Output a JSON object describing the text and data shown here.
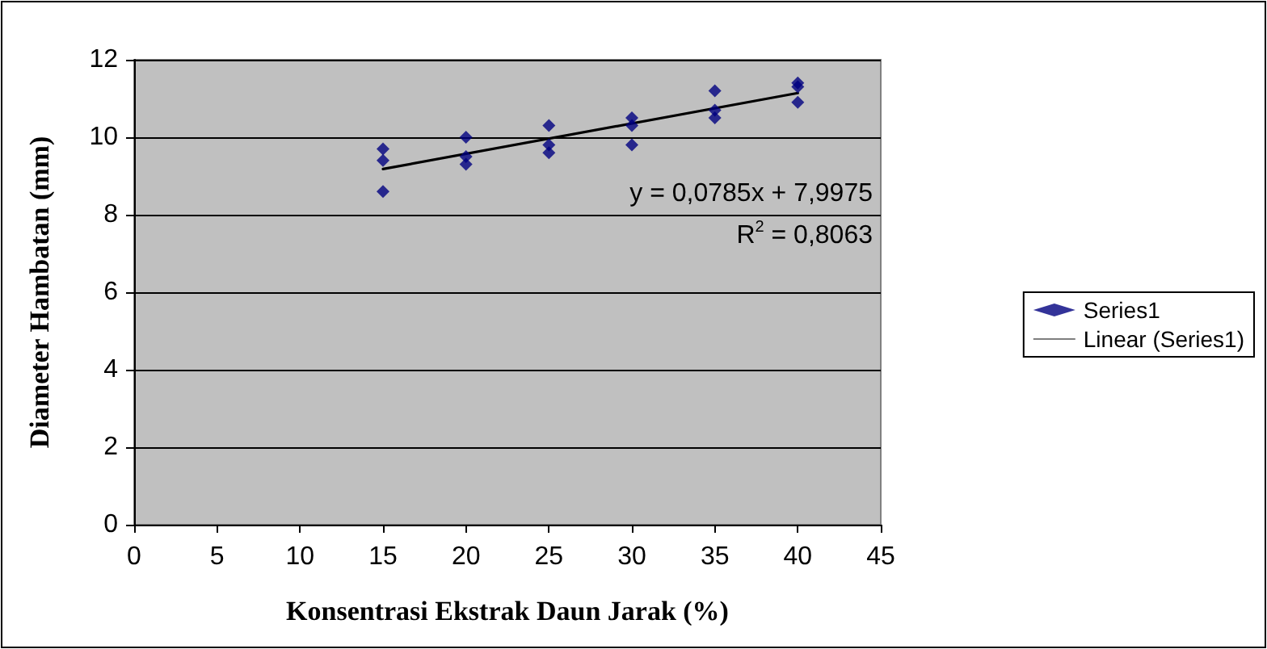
{
  "chart_data": {
    "type": "scatter",
    "xlabel": "Konsentrasi Ekstrak Daun Jarak (%)",
    "ylabel": "Diameter Hambatan (mm)",
    "xlim": [
      0,
      45
    ],
    "xticks": [
      0,
      5,
      10,
      15,
      20,
      25,
      30,
      35,
      40,
      45
    ],
    "ylim": [
      0,
      12
    ],
    "yticks": [
      0,
      2,
      4,
      6,
      8,
      10,
      12
    ],
    "grid": "y",
    "legend": "right",
    "marker": "diamond",
    "annotations": [
      "y = 0,0785x + 7,9975",
      "R$^{2}$ = 0,8063"
    ],
    "series": [
      {
        "name": "Series1",
        "color": "#000080",
        "x": [
          15,
          15,
          15,
          20,
          20,
          20,
          25,
          25,
          25,
          30,
          30,
          30,
          35,
          35,
          35,
          40,
          40,
          40
        ],
        "values": [
          9.7,
          9.4,
          8.6,
          10.0,
          9.5,
          9.3,
          10.3,
          9.8,
          9.6,
          10.5,
          10.3,
          9.8,
          11.2,
          10.7,
          10.5,
          11.4,
          11.3,
          10.9
        ]
      },
      {
        "name": "Linear (Series1)",
        "type": "line",
        "color": "#000000",
        "marker": "none",
        "line_style": "solid",
        "x": [
          15,
          40
        ],
        "values": [
          9.18,
          11.14
        ]
      }
    ]
  }
}
